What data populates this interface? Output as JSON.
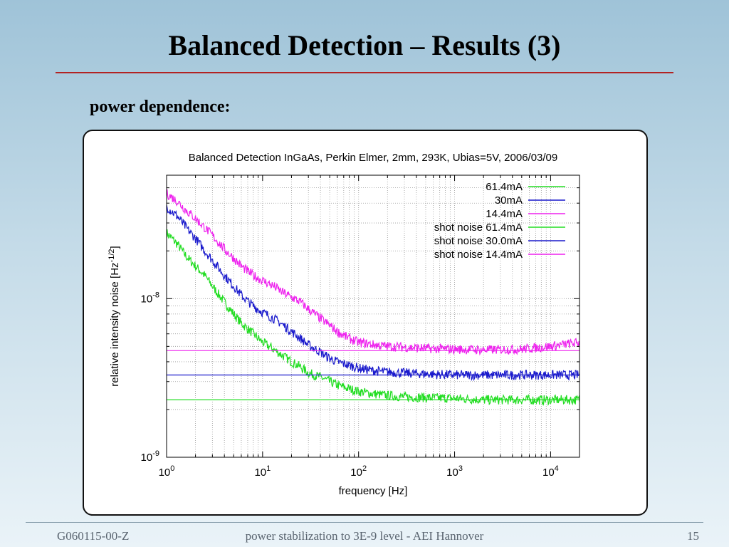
{
  "slide": {
    "title": "Balanced Detection – Results (3)",
    "subheading": "power dependence:",
    "footer_left": "G060115-00-Z",
    "footer_center": "power stabilization to 3E-9 level  - AEI Hannover",
    "footer_right": "15"
  },
  "chart_data": {
    "type": "line",
    "title": "Balanced Detection InGaAs, Perkin Elmer, 2mm, 293K, Ubias=5V, 2006/03/09",
    "xlabel": "frequency [Hz]",
    "ylabel": "relative intensity noise [Hz",
    "ylabel_sup": "-1/2",
    "ylabel_end": "]",
    "xscale": "log",
    "yscale": "log",
    "xlim": [
      1,
      20000
    ],
    "ylim": [
      1e-09,
      6e-08
    ],
    "grid": true,
    "legend_position": "top-right",
    "x_ticks": [
      {
        "value": 1,
        "base": "10",
        "exp": "0"
      },
      {
        "value": 10,
        "base": "10",
        "exp": "1"
      },
      {
        "value": 100,
        "base": "10",
        "exp": "2"
      },
      {
        "value": 1000,
        "base": "10",
        "exp": "3"
      },
      {
        "value": 10000,
        "base": "10",
        "exp": "4"
      }
    ],
    "y_ticks": [
      {
        "value": 1e-09,
        "base": "10",
        "exp": "-9"
      },
      {
        "value": 1e-08,
        "base": "10",
        "exp": "-8"
      }
    ],
    "series": [
      {
        "name": "61.4mA",
        "color": "#22dd22",
        "kind": "spectrum",
        "x": [
          1,
          1.3,
          1.6,
          2,
          2.5,
          3,
          4,
          5,
          6,
          8,
          10,
          13,
          16,
          20,
          25,
          30,
          40,
          50,
          60,
          80,
          100,
          150,
          200,
          300,
          500,
          1000,
          2000,
          5000,
          10000,
          20000
        ],
        "y": [
          2.6e-08,
          2.2e-08,
          1.85e-08,
          1.6e-08,
          1.4e-08,
          1.2e-08,
          9.5e-09,
          8e-09,
          7e-09,
          6e-09,
          5.3e-09,
          4.8e-09,
          4.4e-09,
          4e-09,
          3.7e-09,
          3.4e-09,
          3.2e-09,
          3e-09,
          2.85e-09,
          2.7e-09,
          2.6e-09,
          2.5e-09,
          2.45e-09,
          2.4e-09,
          2.38e-09,
          2.35e-09,
          2.3e-09,
          2.3e-09,
          2.3e-09,
          2.3e-09
        ]
      },
      {
        "name": "30mA",
        "color": "#1a1acc",
        "kind": "spectrum",
        "x": [
          1,
          1.3,
          1.6,
          2,
          2.5,
          3,
          4,
          5,
          6,
          8,
          10,
          13,
          16,
          20,
          25,
          30,
          40,
          50,
          60,
          80,
          100,
          150,
          200,
          300,
          500,
          1000,
          2000,
          5000,
          10000,
          20000
        ],
        "y": [
          3.8e-08,
          3.3e-08,
          2.8e-08,
          2.4e-08,
          2e-08,
          1.75e-08,
          1.4e-08,
          1.2e-08,
          1.05e-08,
          9e-09,
          8.2e-09,
          7.5e-09,
          6.9e-09,
          6.2e-09,
          5.6e-09,
          5.1e-09,
          4.6e-09,
          4.2e-09,
          4e-09,
          3.8e-09,
          3.65e-09,
          3.5e-09,
          3.45e-09,
          3.4e-09,
          3.35e-09,
          3.3e-09,
          3.3e-09,
          3.3e-09,
          3.3e-09,
          3.3e-09
        ]
      },
      {
        "name": "14.4mA",
        "color": "#ee22ee",
        "kind": "spectrum",
        "x": [
          1,
          1.3,
          1.6,
          2,
          2.5,
          3,
          4,
          5,
          6,
          8,
          10,
          13,
          16,
          20,
          25,
          30,
          40,
          50,
          60,
          80,
          100,
          150,
          200,
          300,
          500,
          1000,
          2000,
          5000,
          10000,
          20000
        ],
        "y": [
          4.6e-08,
          4.1e-08,
          3.6e-08,
          3.2e-08,
          2.8e-08,
          2.5e-08,
          2.05e-08,
          1.8e-08,
          1.6e-08,
          1.4e-08,
          1.3e-08,
          1.2e-08,
          1.1e-08,
          1.02e-08,
          9.5e-09,
          8.6e-09,
          7.5e-09,
          6.8e-09,
          6.2e-09,
          5.6e-09,
          5.3e-09,
          5.1e-09,
          5e-09,
          4.95e-09,
          4.85e-09,
          4.8e-09,
          4.75e-09,
          4.8e-09,
          5e-09,
          5.3e-09
        ]
      },
      {
        "name": "shot noise 61.4mA",
        "color": "#22dd22",
        "kind": "flat",
        "x": [
          1,
          20000
        ],
        "y": [
          2.3e-09,
          2.3e-09
        ]
      },
      {
        "name": "shot noise 30.0mA",
        "color": "#1a1acc",
        "kind": "flat",
        "x": [
          1,
          20000
        ],
        "y": [
          3.3e-09,
          3.3e-09
        ]
      },
      {
        "name": "shot noise 14.4mA",
        "color": "#ee22ee",
        "kind": "flat",
        "x": [
          1,
          20000
        ],
        "y": [
          4.7e-09,
          4.7e-09
        ]
      }
    ]
  }
}
